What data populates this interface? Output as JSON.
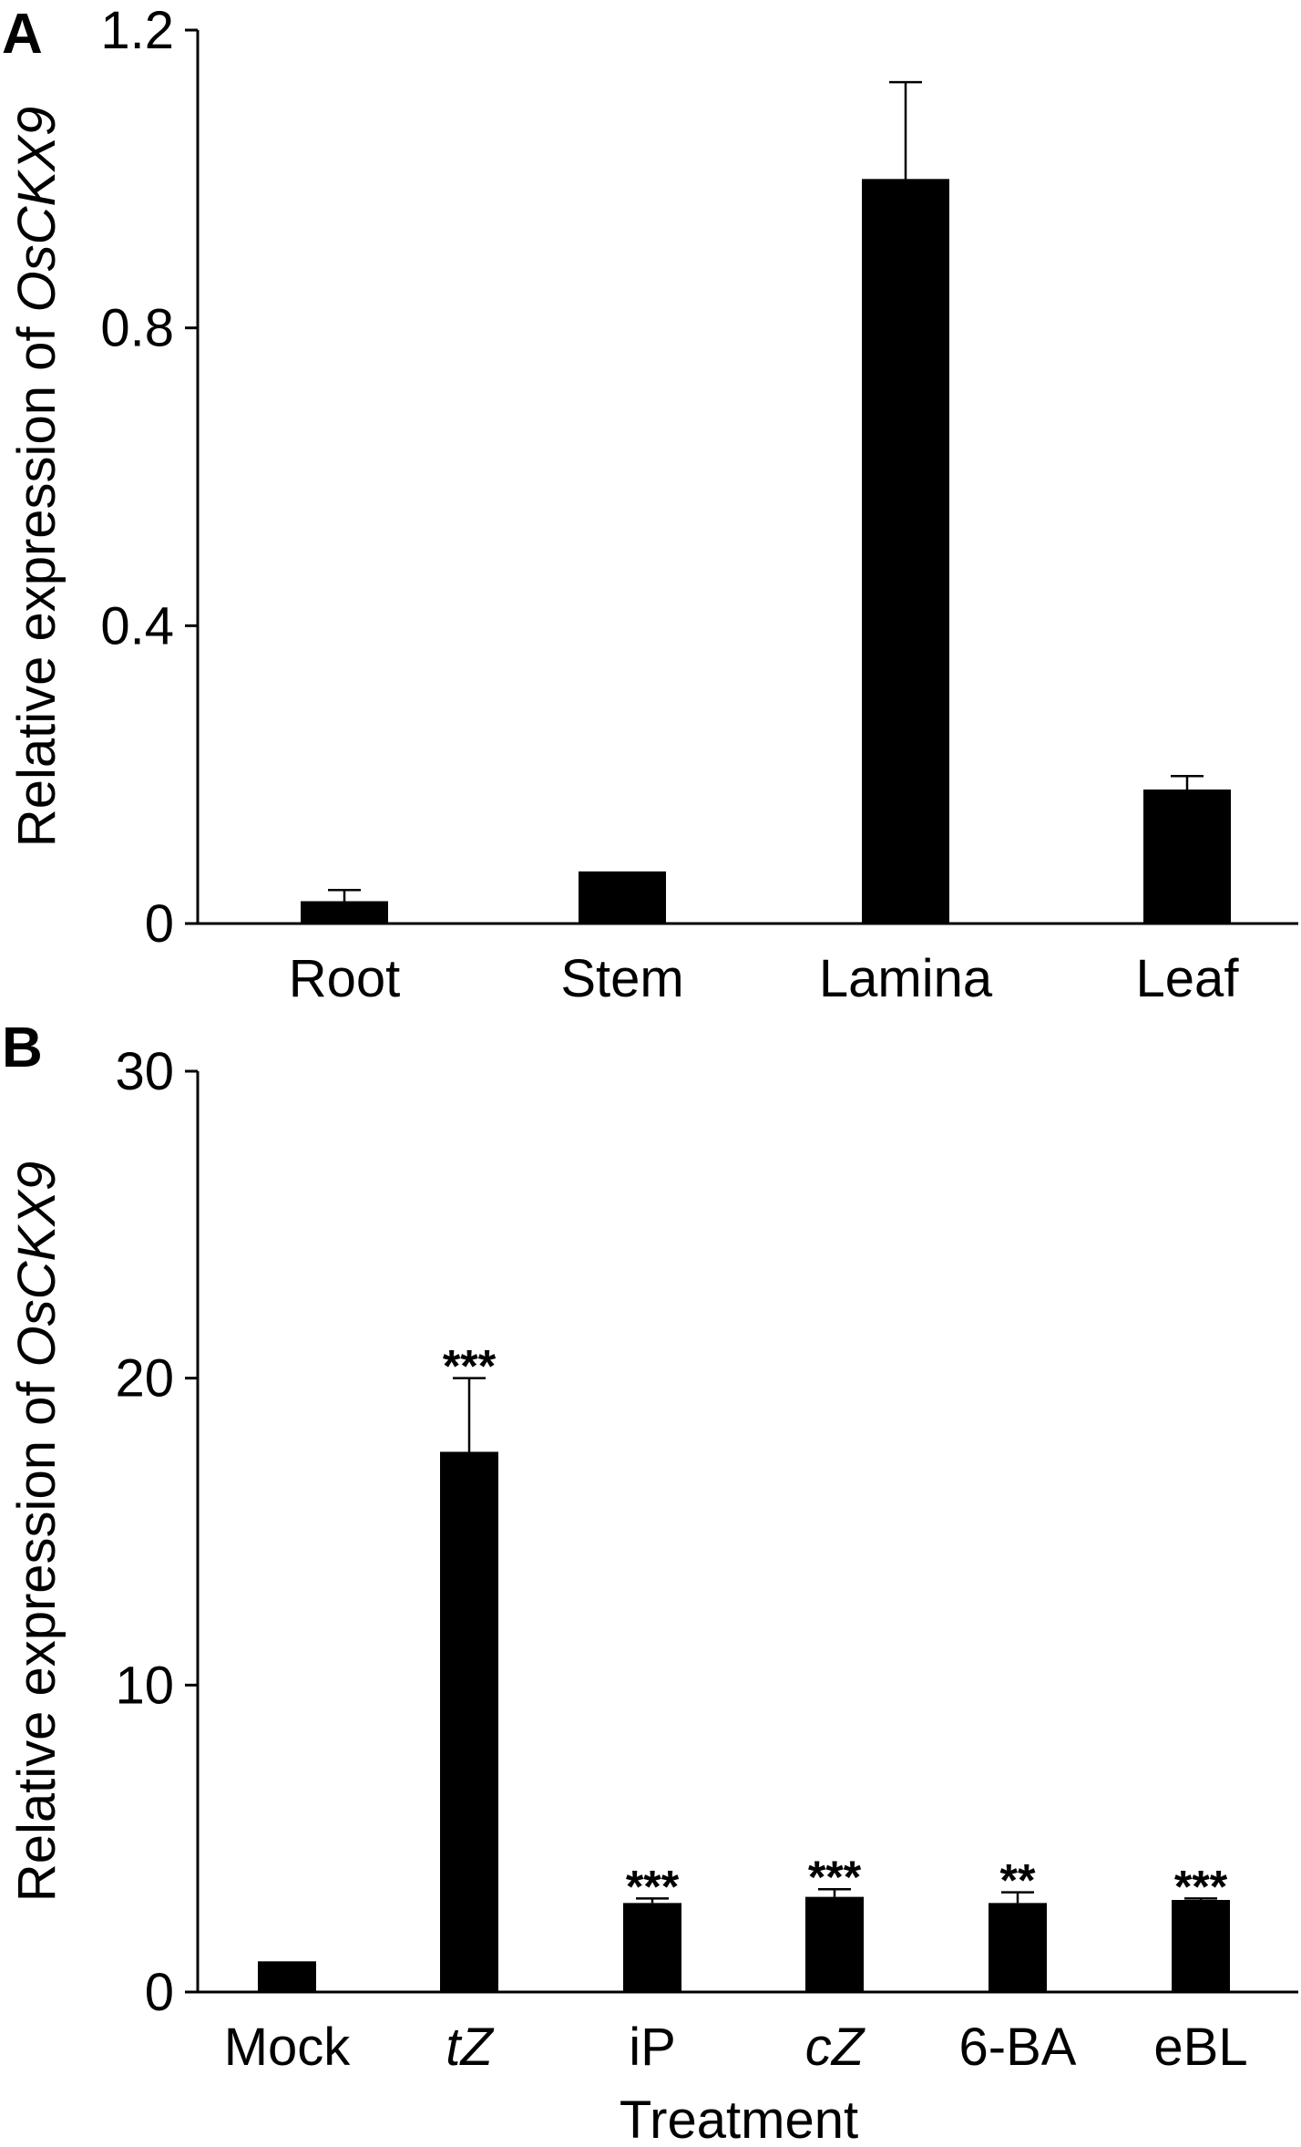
{
  "chart_data": [
    {
      "type": "bar",
      "panel_label": "A",
      "ylabel_parts": [
        "Relative expression of ",
        "OsCKX9"
      ],
      "xlabel": "",
      "categories": [
        "Root",
        "Stem",
        "Lamina",
        "Leaf"
      ],
      "category_italic": [
        false,
        false,
        false,
        false
      ],
      "values": [
        0.03,
        0.07,
        1.0,
        0.18
      ],
      "errors": [
        0.015,
        0.0,
        0.13,
        0.018
      ],
      "significance": [
        "",
        "",
        "",
        ""
      ],
      "ylim": [
        0,
        1.2
      ],
      "yticks": [
        0,
        0.4,
        0.8,
        1.2
      ],
      "ytick_labels": [
        "0",
        "0.4",
        "0.8",
        "1.2"
      ],
      "bar_color": "#000000",
      "grid": false,
      "legend": "none"
    },
    {
      "type": "bar",
      "panel_label": "B",
      "ylabel_parts": [
        "Relative expression of ",
        "OsCKX9"
      ],
      "xlabel": "Treatment",
      "categories": [
        "Mock",
        "tZ",
        "iP",
        "cZ",
        "6-BA",
        "eBL"
      ],
      "category_italic": [
        false,
        true,
        false,
        true,
        false,
        false
      ],
      "values": [
        1.0,
        17.6,
        2.9,
        3.1,
        2.9,
        3.0
      ],
      "errors": [
        0.0,
        2.4,
        0.15,
        0.25,
        0.35,
        0.05
      ],
      "significance": [
        "",
        "***",
        "***",
        "***",
        "**",
        "***"
      ],
      "ylim": [
        0,
        30
      ],
      "yticks": [
        0,
        10,
        20,
        30
      ],
      "ytick_labels": [
        "0",
        "10",
        "20",
        "30"
      ],
      "bar_color": "#000000",
      "grid": false,
      "legend": "none"
    }
  ]
}
